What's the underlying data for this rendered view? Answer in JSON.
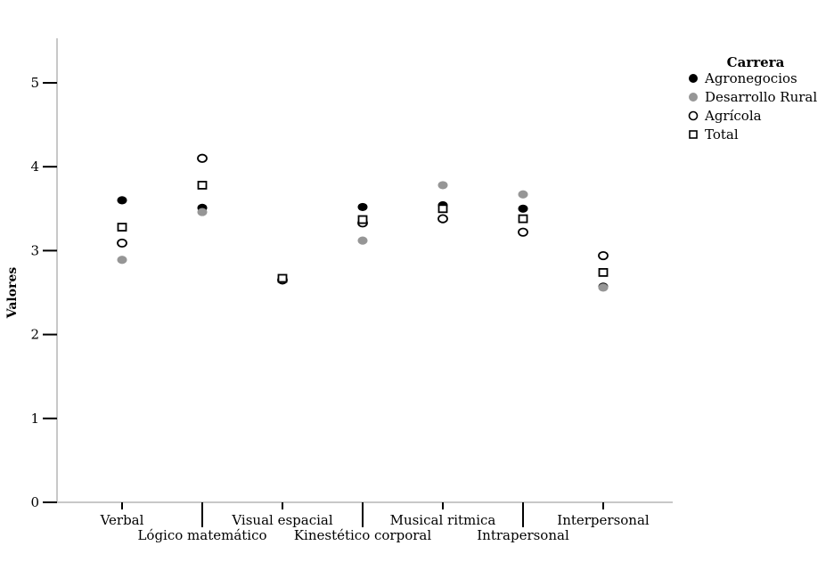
{
  "chart_data": {
    "type": "scatter",
    "title": "",
    "ylabel": "Valores",
    "xlabel": "",
    "ylim": [
      0,
      5
    ],
    "yticks": [
      0,
      1,
      2,
      3,
      4,
      5
    ],
    "grid": false,
    "legend_title": "Carrera",
    "legend_position": "top-right",
    "categories": [
      "Verbal",
      "Lógico matemático",
      "Visual espacial",
      "Kinestético corporal",
      "Musical ritmica",
      "Intrapersonal",
      "Interpersonal"
    ],
    "series": [
      {
        "name": "Agronegocios",
        "marker": "filled-circle",
        "color": "#000000",
        "values": [
          3.6,
          3.51,
          2.66,
          3.52,
          3.54,
          3.5,
          2.57
        ]
      },
      {
        "name": "Desarrollo Rural",
        "marker": "filled-circle",
        "color": "#969696",
        "values": [
          2.89,
          3.46,
          2.65,
          3.12,
          3.78,
          3.67,
          2.56
        ]
      },
      {
        "name": "Agrícola",
        "marker": "open-circle",
        "color": "#000000",
        "values": [
          3.09,
          4.1,
          2.65,
          3.33,
          3.38,
          3.22,
          2.94
        ]
      },
      {
        "name": "Total",
        "marker": "open-square",
        "color": "#000000",
        "values": [
          3.28,
          3.78,
          2.67,
          3.37,
          3.5,
          3.38,
          2.74
        ]
      }
    ],
    "colors": {
      "axis_line": "#c8c8c8",
      "tick": "#000000",
      "text": "#000000",
      "background": "#ffffff",
      "open_marker_fill": "#ffffff"
    }
  }
}
